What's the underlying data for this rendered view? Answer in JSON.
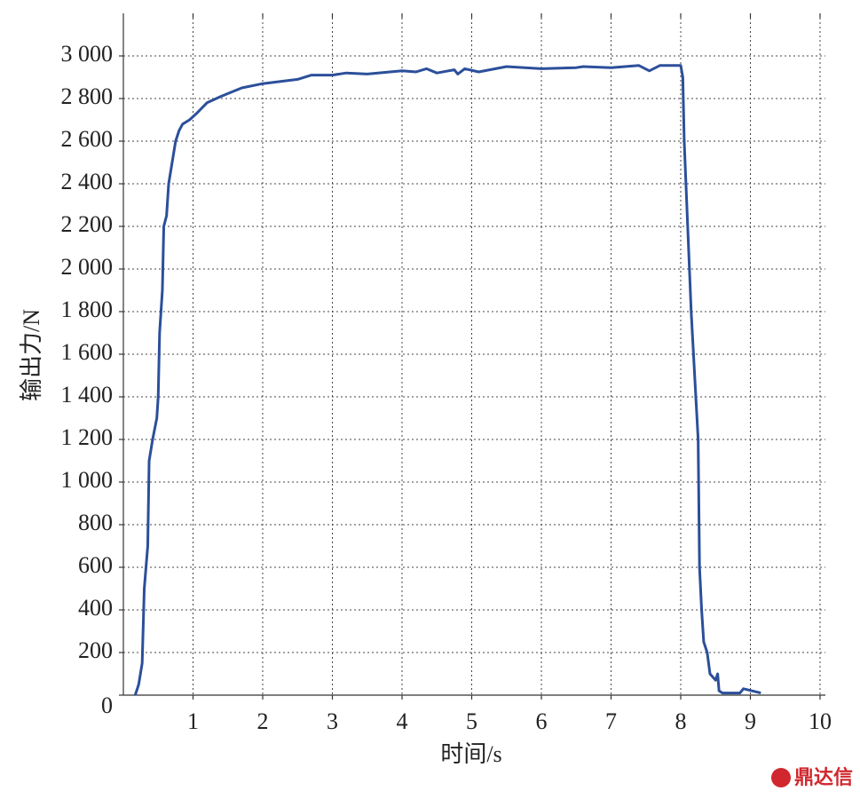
{
  "chart_data": {
    "type": "line",
    "x_label": "时间/s",
    "y_label": "输出力/N",
    "watermark": "鼎达信",
    "xlim": [
      0,
      10
    ],
    "ylim": [
      0,
      3200
    ],
    "xticks": [
      1,
      2,
      3,
      4,
      5,
      6,
      7,
      8,
      9,
      10
    ],
    "yticks": [
      0,
      200,
      400,
      600,
      800,
      {
        "value": 1000,
        "label": "1 000"
      },
      {
        "value": 1200,
        "label": "1 200"
      },
      {
        "value": 1400,
        "label": "1 400"
      },
      {
        "value": 1600,
        "label": "1 600"
      },
      {
        "value": 1800,
        "label": "1 800"
      },
      {
        "value": 2000,
        "label": "2 000"
      },
      {
        "value": 2200,
        "label": "2 200"
      },
      {
        "value": 2400,
        "label": "2 400"
      },
      {
        "value": 2600,
        "label": "2 600"
      },
      {
        "value": 2800,
        "label": "2 800"
      },
      {
        "value": 3000,
        "label": "3 000"
      }
    ],
    "grid": true,
    "series": [
      {
        "color": "#2b4f9a",
        "x": [
          0.17,
          0.22,
          0.27,
          0.3,
          0.35,
          0.37,
          0.42,
          0.48,
          0.5,
          0.52,
          0.56,
          0.58,
          0.62,
          0.65,
          0.7,
          0.75,
          0.8,
          0.85,
          0.95,
          1.05,
          1.2,
          1.4,
          1.7,
          2.0,
          2.5,
          2.7,
          3.0,
          3.2,
          3.5,
          4.0,
          4.2,
          4.35,
          4.5,
          4.75,
          4.8,
          4.9,
          5.1,
          5.5,
          6.0,
          6.5,
          6.6,
          7.0,
          7.4,
          7.55,
          7.7,
          8.0,
          8.03,
          8.05,
          8.1,
          8.15,
          8.2,
          8.25,
          8.27,
          8.3,
          8.33,
          8.38,
          8.42,
          8.5,
          8.53,
          8.55,
          8.6,
          8.85,
          8.9,
          9.15
        ],
        "values": [
          0,
          50,
          150,
          500,
          700,
          1100,
          1200,
          1300,
          1400,
          1700,
          1900,
          2200,
          2250,
          2400,
          2500,
          2600,
          2650,
          2680,
          2700,
          2730,
          2780,
          2810,
          2850,
          2870,
          2890,
          2910,
          2910,
          2920,
          2915,
          2930,
          2925,
          2940,
          2920,
          2935,
          2915,
          2940,
          2925,
          2950,
          2940,
          2945,
          2950,
          2945,
          2955,
          2930,
          2955,
          2955,
          2900,
          2600,
          2200,
          1800,
          1500,
          1200,
          600,
          400,
          250,
          200,
          100,
          70,
          100,
          20,
          10,
          10,
          30,
          10
        ]
      }
    ]
  }
}
